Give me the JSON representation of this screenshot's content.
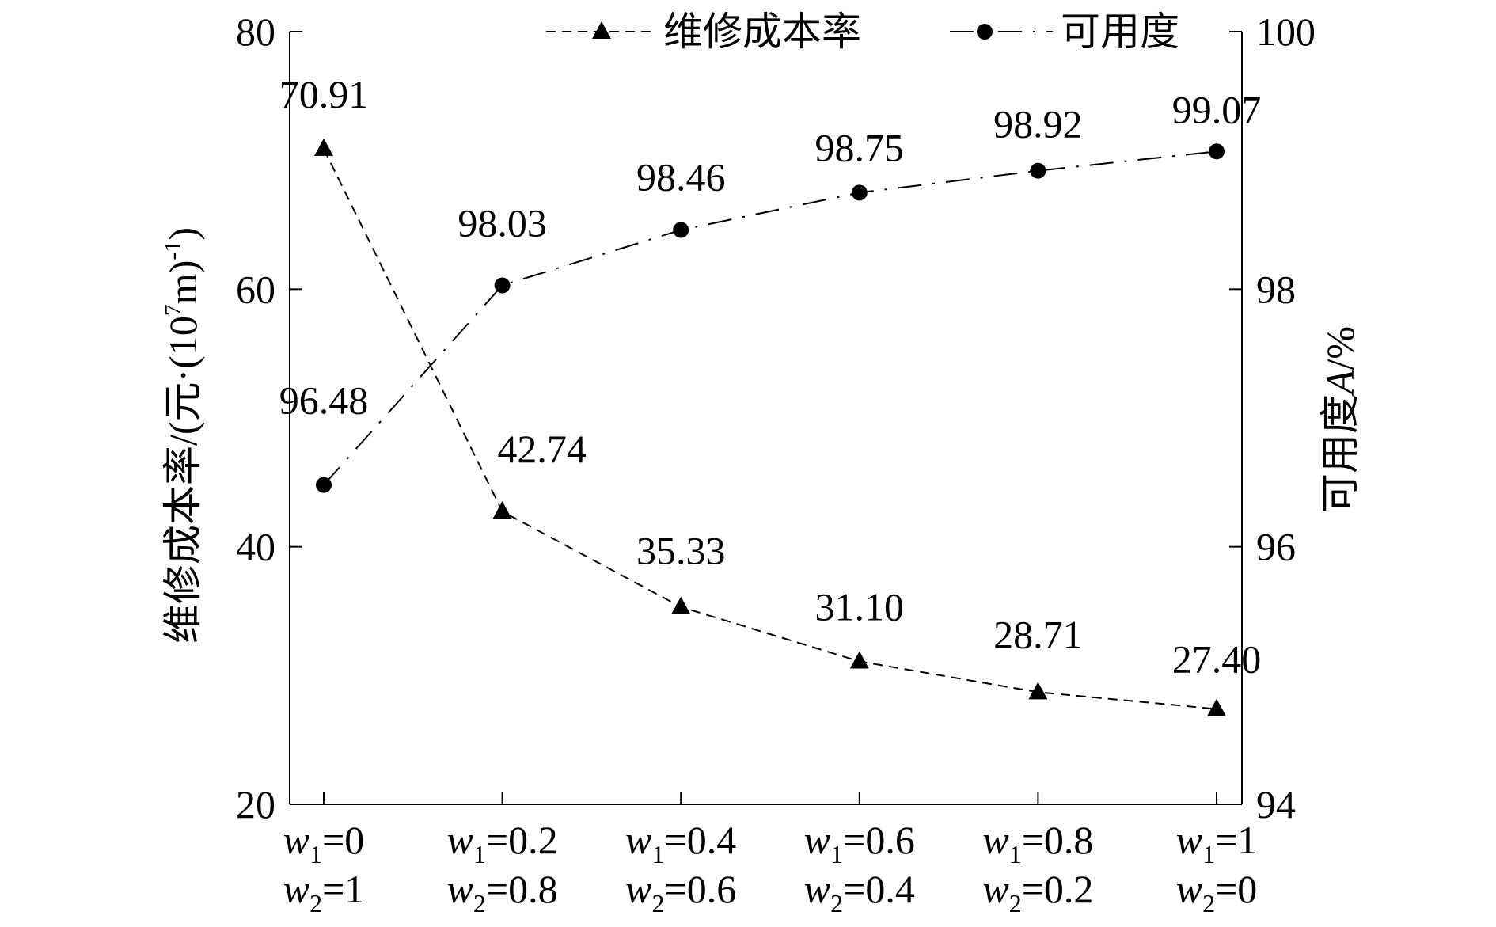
{
  "chart_data": {
    "type": "line",
    "x_ticks": [
      {
        "w1_var": "w",
        "w1_sub": "1",
        "w1_val": "=0",
        "w2_var": "w",
        "w2_sub": "2",
        "w2_val": "=1"
      },
      {
        "w1_var": "w",
        "w1_sub": "1",
        "w1_val": "=0.2",
        "w2_var": "w",
        "w2_sub": "2",
        "w2_val": "=0.8"
      },
      {
        "w1_var": "w",
        "w1_sub": "1",
        "w1_val": "=0.4",
        "w2_var": "w",
        "w2_sub": "2",
        "w2_val": "=0.6"
      },
      {
        "w1_var": "w",
        "w1_sub": "1",
        "w1_val": "=0.6",
        "w2_var": "w",
        "w2_sub": "2",
        "w2_val": "=0.4"
      },
      {
        "w1_var": "w",
        "w1_sub": "1",
        "w1_val": "=0.8",
        "w2_var": "w",
        "w2_sub": "2",
        "w2_val": "=0.2"
      },
      {
        "w1_var": "w",
        "w1_sub": "1",
        "w1_val": "=1",
        "w2_var": "w",
        "w2_sub": "2",
        "w2_val": "=0"
      }
    ],
    "y_left": {
      "label_prefix": "维修成本率/(元·(10",
      "label_sup1": "7",
      "label_mid": "m)",
      "label_sup2": "-1",
      "label_suffix": ")",
      "range": [
        20,
        80
      ],
      "ticks": [
        "20",
        "40",
        "60",
        "80"
      ]
    },
    "y_right": {
      "label_prefix": "可用度",
      "label_italic": "A",
      "label_suffix": "/%",
      "range": [
        94,
        100
      ],
      "ticks": [
        "94",
        "96",
        "98",
        "100"
      ]
    },
    "series": [
      {
        "name": "维修成本率",
        "axis": "left",
        "line_style": "dashed",
        "marker": "triangle",
        "values": [
          70.91,
          42.74,
          35.33,
          31.1,
          28.71,
          27.4
        ],
        "labels": [
          "70.91",
          "42.74",
          "35.33",
          "31.10",
          "28.71",
          "27.40"
        ]
      },
      {
        "name": "可用度",
        "axis": "right",
        "line_style": "dash-dot",
        "marker": "circle",
        "values": [
          96.48,
          98.03,
          98.46,
          98.75,
          98.92,
          99.07
        ],
        "labels": [
          "96.48",
          "98.03",
          "98.46",
          "98.75",
          "98.92",
          "99.07"
        ]
      }
    ],
    "legend_position": "top",
    "grid": false,
    "color": "#000000"
  }
}
